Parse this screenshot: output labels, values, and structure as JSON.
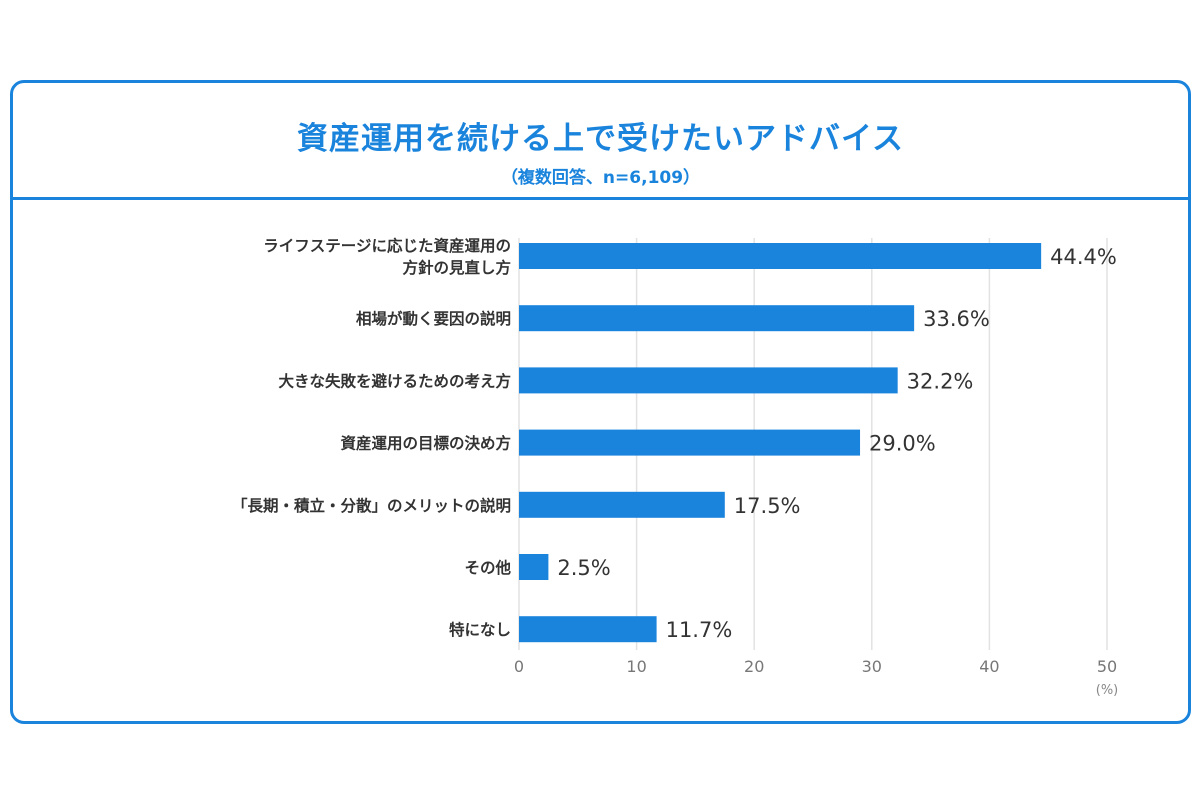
{
  "chart_data": {
    "type": "bar",
    "orientation": "horizontal",
    "title": "資産運用を続ける上で受けたいアドバイス",
    "subtitle": "（複数回答、n=6,109）",
    "categories": [
      [
        "ライフステージに応じた資産運用の",
        "方針の見直し方"
      ],
      [
        "相場が動く要因の説明"
      ],
      [
        "大きな失敗を避けるための考え方"
      ],
      [
        "資産運用の目標の決め方"
      ],
      [
        "「長期・積立・分散」のメリットの説明"
      ],
      [
        "その他"
      ],
      [
        "特になし"
      ]
    ],
    "values": [
      44.4,
      33.6,
      32.2,
      29.0,
      17.5,
      2.5,
      11.7
    ],
    "value_labels": [
      "44.4%",
      "33.6%",
      "32.2%",
      "29.0%",
      "17.5%",
      "2.5%",
      "11.7%"
    ],
    "xlim": [
      0,
      50
    ],
    "xticks": [
      "0",
      "10",
      "20",
      "30",
      "40",
      "50"
    ],
    "xunit": "(%)",
    "grid": true,
    "bar_color": "#1a84dd",
    "accent_color": "#1a84dd"
  }
}
